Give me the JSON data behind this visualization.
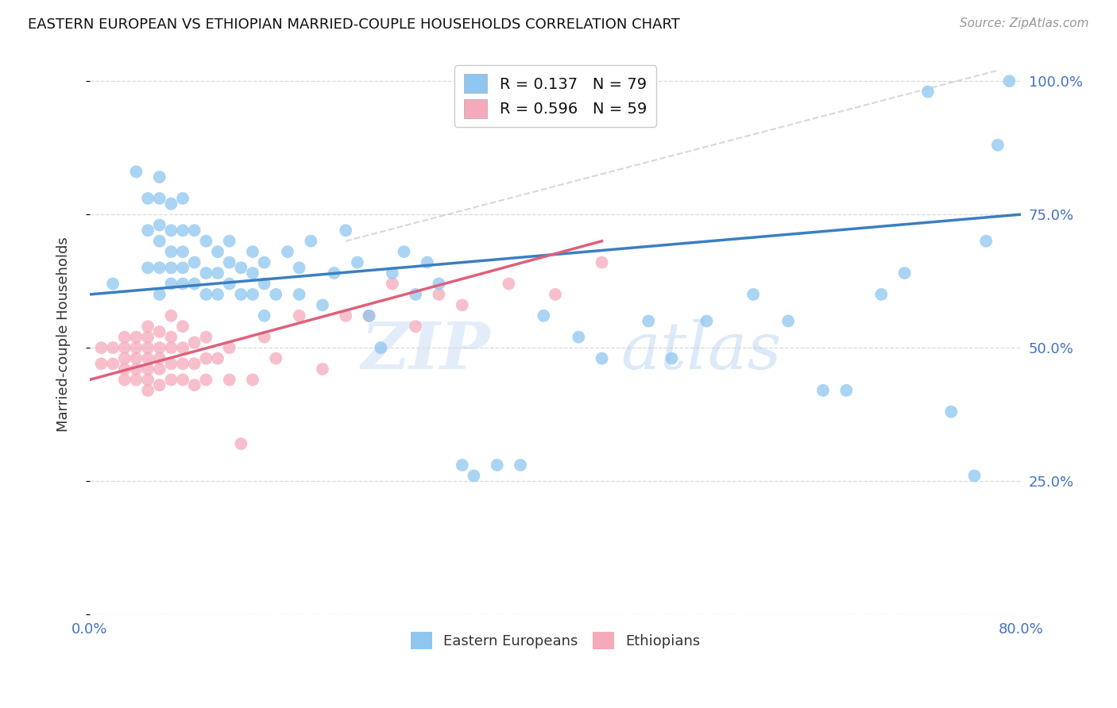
{
  "title": "EASTERN EUROPEAN VS ETHIOPIAN MARRIED-COUPLE HOUSEHOLDS CORRELATION CHART",
  "source": "Source: ZipAtlas.com",
  "ylabel": "Married-couple Households",
  "xlim": [
    0.0,
    0.8
  ],
  "ylim": [
    0.0,
    1.05
  ],
  "yticks": [
    0.0,
    0.25,
    0.5,
    0.75,
    1.0
  ],
  "ytick_labels_right": [
    "",
    "25.0%",
    "50.0%",
    "75.0%",
    "100.0%"
  ],
  "xticks": [
    0.0,
    0.1,
    0.2,
    0.3,
    0.4,
    0.5,
    0.6,
    0.7,
    0.8
  ],
  "xtick_labels": [
    "0.0%",
    "",
    "",
    "",
    "",
    "",
    "",
    "",
    "80.0%"
  ],
  "background_color": "#ffffff",
  "blue_color": "#8ec6f0",
  "pink_color": "#f5aabb",
  "blue_line_color": "#3a7fc1",
  "pink_line_color": "#e0607a",
  "dashed_line_color": "#c8c8c8",
  "tick_color": "#4472c4",
  "grid_color": "#d5d5d5",
  "R_blue": 0.137,
  "N_blue": 79,
  "R_pink": 0.596,
  "N_pink": 59,
  "watermark_zip": "ZIP",
  "watermark_atlas": "atlas",
  "blue_scatter_x": [
    0.02,
    0.04,
    0.05,
    0.05,
    0.05,
    0.06,
    0.06,
    0.06,
    0.06,
    0.06,
    0.06,
    0.07,
    0.07,
    0.07,
    0.07,
    0.07,
    0.08,
    0.08,
    0.08,
    0.08,
    0.08,
    0.09,
    0.09,
    0.09,
    0.1,
    0.1,
    0.1,
    0.11,
    0.11,
    0.11,
    0.12,
    0.12,
    0.12,
    0.13,
    0.13,
    0.14,
    0.14,
    0.14,
    0.15,
    0.15,
    0.15,
    0.16,
    0.17,
    0.18,
    0.18,
    0.19,
    0.2,
    0.21,
    0.22,
    0.23,
    0.24,
    0.25,
    0.26,
    0.27,
    0.28,
    0.29,
    0.3,
    0.32,
    0.33,
    0.35,
    0.37,
    0.39,
    0.42,
    0.44,
    0.48,
    0.5,
    0.53,
    0.57,
    0.6,
    0.63,
    0.65,
    0.68,
    0.7,
    0.72,
    0.74,
    0.76,
    0.77,
    0.78,
    0.79
  ],
  "blue_scatter_y": [
    0.62,
    0.83,
    0.65,
    0.72,
    0.78,
    0.6,
    0.65,
    0.7,
    0.73,
    0.78,
    0.82,
    0.62,
    0.65,
    0.68,
    0.72,
    0.77,
    0.62,
    0.65,
    0.68,
    0.72,
    0.78,
    0.62,
    0.66,
    0.72,
    0.6,
    0.64,
    0.7,
    0.6,
    0.64,
    0.68,
    0.62,
    0.66,
    0.7,
    0.6,
    0.65,
    0.6,
    0.64,
    0.68,
    0.56,
    0.62,
    0.66,
    0.6,
    0.68,
    0.6,
    0.65,
    0.7,
    0.58,
    0.64,
    0.72,
    0.66,
    0.56,
    0.5,
    0.64,
    0.68,
    0.6,
    0.66,
    0.62,
    0.28,
    0.26,
    0.28,
    0.28,
    0.56,
    0.52,
    0.48,
    0.55,
    0.48,
    0.55,
    0.6,
    0.55,
    0.42,
    0.42,
    0.6,
    0.64,
    0.98,
    0.38,
    0.26,
    0.7,
    0.88,
    1.0
  ],
  "pink_scatter_x": [
    0.01,
    0.01,
    0.02,
    0.02,
    0.03,
    0.03,
    0.03,
    0.03,
    0.03,
    0.04,
    0.04,
    0.04,
    0.04,
    0.04,
    0.05,
    0.05,
    0.05,
    0.05,
    0.05,
    0.05,
    0.05,
    0.06,
    0.06,
    0.06,
    0.06,
    0.06,
    0.07,
    0.07,
    0.07,
    0.07,
    0.07,
    0.08,
    0.08,
    0.08,
    0.08,
    0.09,
    0.09,
    0.09,
    0.1,
    0.1,
    0.1,
    0.11,
    0.12,
    0.12,
    0.13,
    0.14,
    0.15,
    0.16,
    0.18,
    0.2,
    0.22,
    0.24,
    0.26,
    0.28,
    0.3,
    0.32,
    0.36,
    0.4,
    0.44
  ],
  "pink_scatter_y": [
    0.47,
    0.5,
    0.47,
    0.5,
    0.44,
    0.46,
    0.48,
    0.5,
    0.52,
    0.44,
    0.46,
    0.48,
    0.5,
    0.52,
    0.42,
    0.44,
    0.46,
    0.48,
    0.5,
    0.52,
    0.54,
    0.43,
    0.46,
    0.48,
    0.5,
    0.53,
    0.44,
    0.47,
    0.5,
    0.52,
    0.56,
    0.44,
    0.47,
    0.5,
    0.54,
    0.43,
    0.47,
    0.51,
    0.44,
    0.48,
    0.52,
    0.48,
    0.44,
    0.5,
    0.32,
    0.44,
    0.52,
    0.48,
    0.56,
    0.46,
    0.56,
    0.56,
    0.62,
    0.54,
    0.6,
    0.58,
    0.62,
    0.6,
    0.66
  ]
}
